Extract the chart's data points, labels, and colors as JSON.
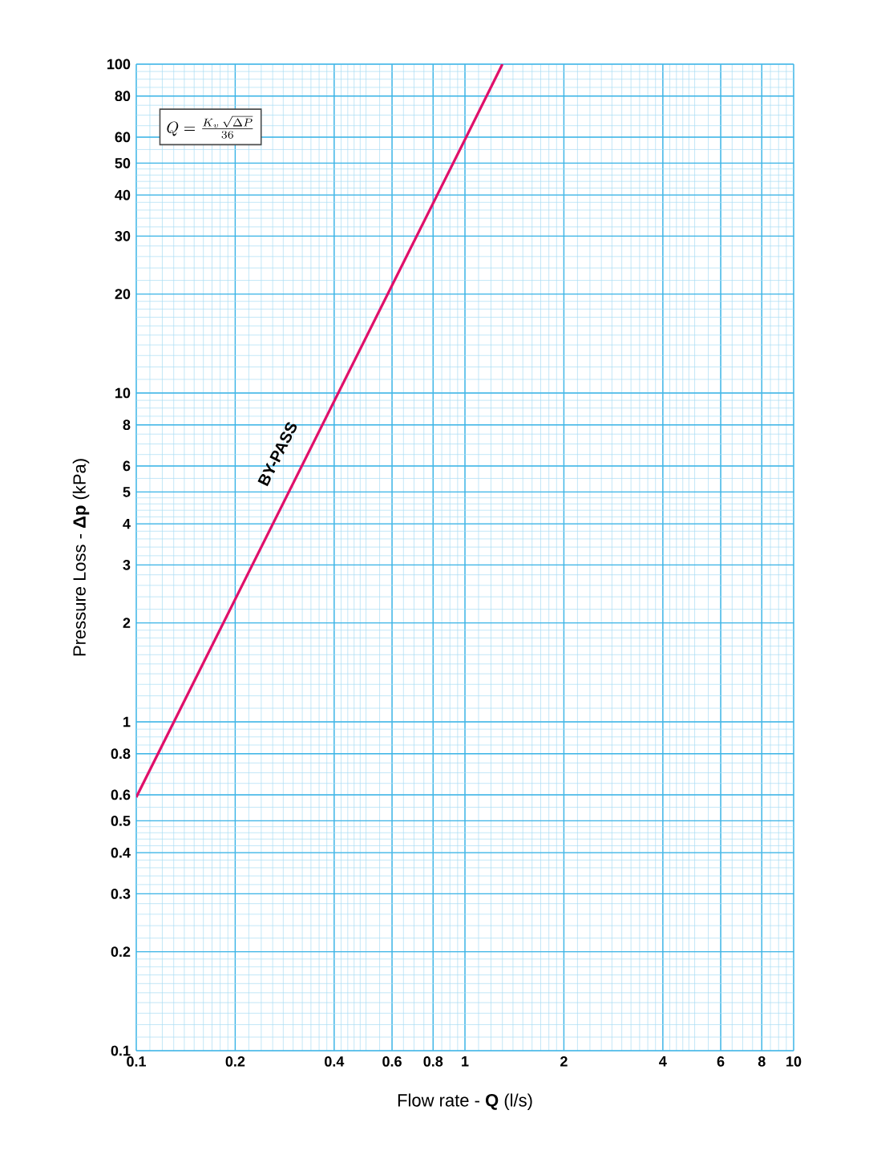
{
  "chart_data": {
    "type": "line",
    "xlabel": "Flow rate - **Q** (l/s)",
    "ylabel": "Pressure Loss  - **Δp** (kPa)",
    "log": "xy",
    "grid": true,
    "x": [
      0.1,
      1,
      1.3
    ],
    "series": [
      {
        "color": "#e0106a",
        "values": [
          0.59,
          59,
          100
        ]
      }
    ],
    "xlim": [
      0.1,
      10
    ],
    "ylim": [
      0.1,
      100
    ],
    "xticks": [
      0.1,
      0.2,
      0.4,
      0.6,
      0.8,
      1,
      2,
      4,
      6,
      8,
      10
    ],
    "yticks": [
      0.1,
      0.2,
      0.3,
      0.4,
      0.5,
      0.6,
      0.8,
      1,
      2,
      3,
      4,
      5,
      6,
      8,
      10,
      20,
      30,
      40,
      50,
      60,
      80,
      100
    ],
    "annotations": [
      "Q = \\frac{K_{v}\\,\\sqrt{\\Delta P}}{36}",
      "BY-PASS"
    ]
  }
}
